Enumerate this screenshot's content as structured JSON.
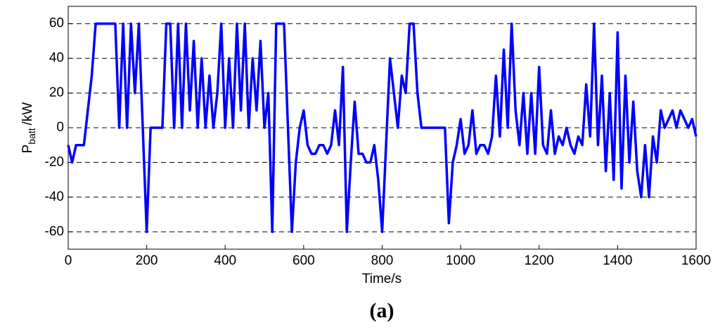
{
  "chart_data": {
    "type": "line",
    "xlabel": "Time/s",
    "ylabel": "P",
    "ylabel_sub": "batt",
    "ylabel_suffix": "/kW",
    "caption": "(a)",
    "xlim": [
      0,
      1600
    ],
    "xticks": [
      0,
      200,
      400,
      600,
      800,
      1000,
      1200,
      1400,
      1600
    ],
    "ylim": [
      -70,
      70
    ],
    "yticks": [
      -60,
      -40,
      -20,
      0,
      20,
      40,
      60
    ],
    "grid": true,
    "x": [
      0,
      10,
      20,
      30,
      40,
      50,
      60,
      70,
      80,
      90,
      100,
      110,
      120,
      130,
      140,
      150,
      160,
      170,
      180,
      190,
      200,
      210,
      220,
      230,
      240,
      250,
      260,
      270,
      280,
      290,
      300,
      310,
      320,
      330,
      340,
      350,
      360,
      370,
      380,
      390,
      400,
      410,
      420,
      430,
      440,
      450,
      460,
      470,
      480,
      490,
      500,
      510,
      520,
      530,
      540,
      550,
      560,
      570,
      580,
      590,
      600,
      610,
      620,
      630,
      640,
      650,
      660,
      670,
      680,
      690,
      700,
      710,
      720,
      730,
      740,
      750,
      760,
      770,
      780,
      790,
      800,
      810,
      820,
      830,
      840,
      850,
      860,
      870,
      880,
      890,
      900,
      910,
      920,
      930,
      940,
      950,
      960,
      970,
      980,
      990,
      1000,
      1010,
      1020,
      1030,
      1040,
      1050,
      1060,
      1070,
      1080,
      1090,
      1100,
      1110,
      1120,
      1130,
      1140,
      1150,
      1160,
      1170,
      1180,
      1190,
      1200,
      1210,
      1220,
      1230,
      1240,
      1250,
      1260,
      1270,
      1280,
      1290,
      1300,
      1310,
      1320,
      1330,
      1340,
      1350,
      1360,
      1370,
      1380,
      1390,
      1400,
      1410,
      1420,
      1430,
      1440,
      1450,
      1460,
      1470,
      1480,
      1490,
      1500,
      1510,
      1520,
      1530,
      1540,
      1550,
      1560,
      1570,
      1580,
      1590,
      1600
    ],
    "series": [
      {
        "name": "P_batt",
        "color": "#0000ff",
        "values": [
          -10,
          -20,
          -10,
          -10,
          -10,
          10,
          30,
          60,
          60,
          60,
          60,
          60,
          60,
          0,
          60,
          0,
          60,
          20,
          60,
          0,
          -60,
          0,
          0,
          0,
          0,
          60,
          60,
          0,
          60,
          0,
          60,
          10,
          50,
          0,
          40,
          0,
          30,
          0,
          20,
          60,
          0,
          40,
          0,
          60,
          10,
          60,
          0,
          40,
          10,
          50,
          0,
          20,
          -60,
          60,
          60,
          60,
          0,
          -60,
          -20,
          0,
          10,
          -10,
          -15,
          -15,
          -10,
          -10,
          -15,
          -10,
          10,
          -10,
          35,
          -60,
          -20,
          15,
          -15,
          -15,
          -20,
          -20,
          -10,
          -30,
          -60,
          -10,
          40,
          20,
          0,
          30,
          20,
          60,
          60,
          20,
          0,
          0,
          0,
          0,
          0,
          0,
          0,
          -55,
          -20,
          -10,
          5,
          -15,
          -10,
          10,
          -15,
          -10,
          -10,
          -15,
          -5,
          30,
          -5,
          45,
          0,
          60,
          10,
          -10,
          20,
          -15,
          20,
          -15,
          35,
          -10,
          -15,
          10,
          -15,
          -5,
          -10,
          0,
          -10,
          -15,
          -5,
          -10,
          25,
          -5,
          60,
          -10,
          30,
          -25,
          20,
          -30,
          55,
          -35,
          30,
          -20,
          15,
          -25,
          -40,
          -10,
          -40,
          -5,
          -20,
          10,
          0,
          5,
          10,
          0,
          10,
          5,
          0,
          5,
          -5
        ]
      }
    ]
  }
}
